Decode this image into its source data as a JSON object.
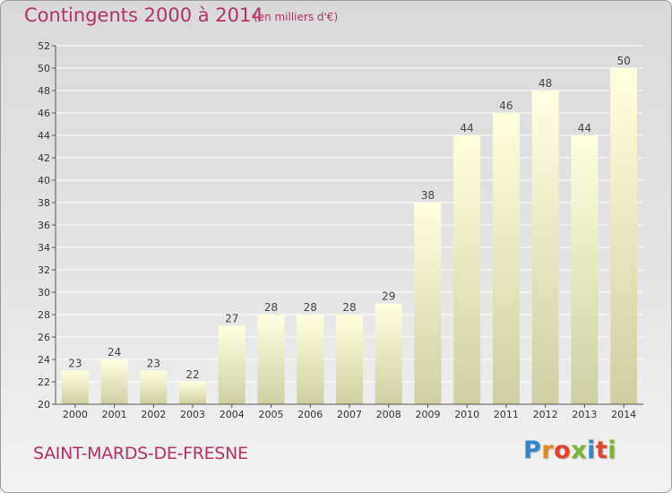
{
  "chart_data": {
    "type": "bar",
    "title": "Contingents 2000 à 2014",
    "subtitle": "(en milliers d'€)",
    "xlabel": "",
    "ylabel": "",
    "categories": [
      "2000",
      "2001",
      "2002",
      "2003",
      "2004",
      "2005",
      "2006",
      "2007",
      "2008",
      "2009",
      "2010",
      "2011",
      "2012",
      "2013",
      "2014"
    ],
    "values": [
      23,
      24,
      23,
      22,
      27,
      28,
      28,
      28,
      29,
      38,
      44,
      46,
      48,
      44,
      50
    ],
    "ylim": [
      20,
      52
    ],
    "ytick_step": 2,
    "grid": true,
    "legend": "none",
    "bar_color_top": "#ffffe0",
    "bar_color_bottom": "#cfcfa3"
  },
  "footer": {
    "place": "SAINT-MARDS-DE-FRESNE",
    "logo_letters": [
      "P",
      "r",
      "o",
      "x",
      "i",
      "t",
      "i"
    ],
    "logo_colors": [
      "#2f86c8",
      "#e08a1e",
      "#e3432b",
      "#79b43a",
      "#2f86c8",
      "#e3432b",
      "#79b43a"
    ]
  },
  "colors": {
    "accent": "#b5306a",
    "grid": "#ffffff",
    "axis_text": "#333333"
  }
}
